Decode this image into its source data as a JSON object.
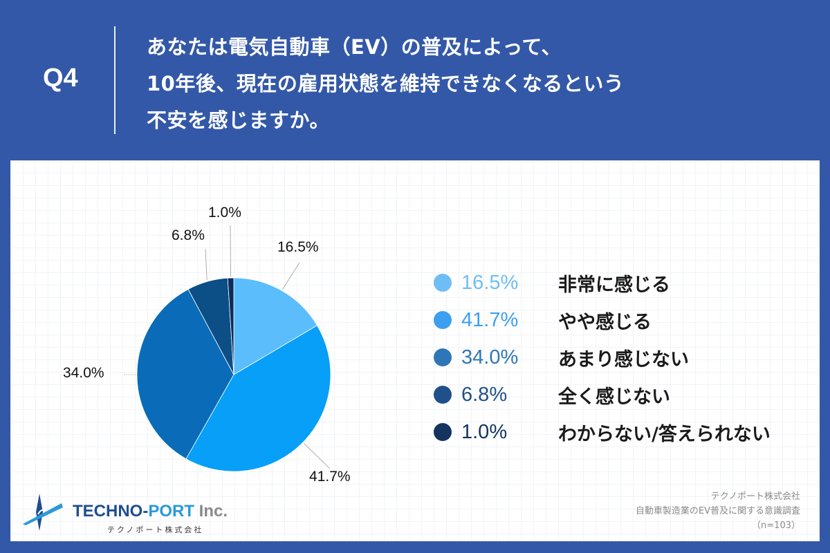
{
  "header": {
    "question_number": "Q4",
    "question_lines": [
      "あなたは電気自動車（EV）の普及によって、",
      "10年後、現在の雇用状態を維持できなくなるという",
      "不安を感じますか。"
    ]
  },
  "colors": {
    "background": "#3358a8",
    "panel": "#ffffff",
    "slices": [
      "#5bbdfb",
      "#079ff7",
      "#0a6cb8",
      "#0c4e86",
      "#0b2d5c"
    ],
    "legend_dots": [
      "#6fbdf5",
      "#3d9ff0",
      "#2e76b8",
      "#20508a",
      "#14335f"
    ]
  },
  "chart_data": {
    "type": "pie",
    "title": "あなたは電気自動車（EV）の普及によって、10年後、現在の雇用状態を維持できなくなるという不安を感じますか。",
    "categories": [
      "非常に感じる",
      "やや感じる",
      "あまり感じない",
      "全く感じない",
      "わからない/答えられない"
    ],
    "values": [
      16.5,
      41.7,
      34.0,
      6.8,
      1.0
    ],
    "unit": "%",
    "start_angle": "12 o'clock, clockwise",
    "legend_position": "right",
    "sample_size": 103
  },
  "pie_labels": [
    "16.5%",
    "41.7%",
    "34.0%",
    "6.8%",
    "1.0%"
  ],
  "legend": [
    {
      "pct": "16.5%",
      "label": "非常に感じる"
    },
    {
      "pct": "41.7%",
      "label": "やや感じる"
    },
    {
      "pct": "34.0%",
      "label": "あまり感じない"
    },
    {
      "pct": "6.8%",
      "label": "全く感じない"
    },
    {
      "pct": "1.0%",
      "label": "わからない/答えられない"
    }
  ],
  "logo": {
    "name_part1": "TECHNO-",
    "name_part2": "PORT",
    "name_part3": " Inc.",
    "subtitle": "テクノポート株式会社"
  },
  "source": {
    "company": "テクノポート株式会社",
    "survey": "自動車製造業のEV普及に関する意識調査",
    "sample": "（n=103）"
  }
}
